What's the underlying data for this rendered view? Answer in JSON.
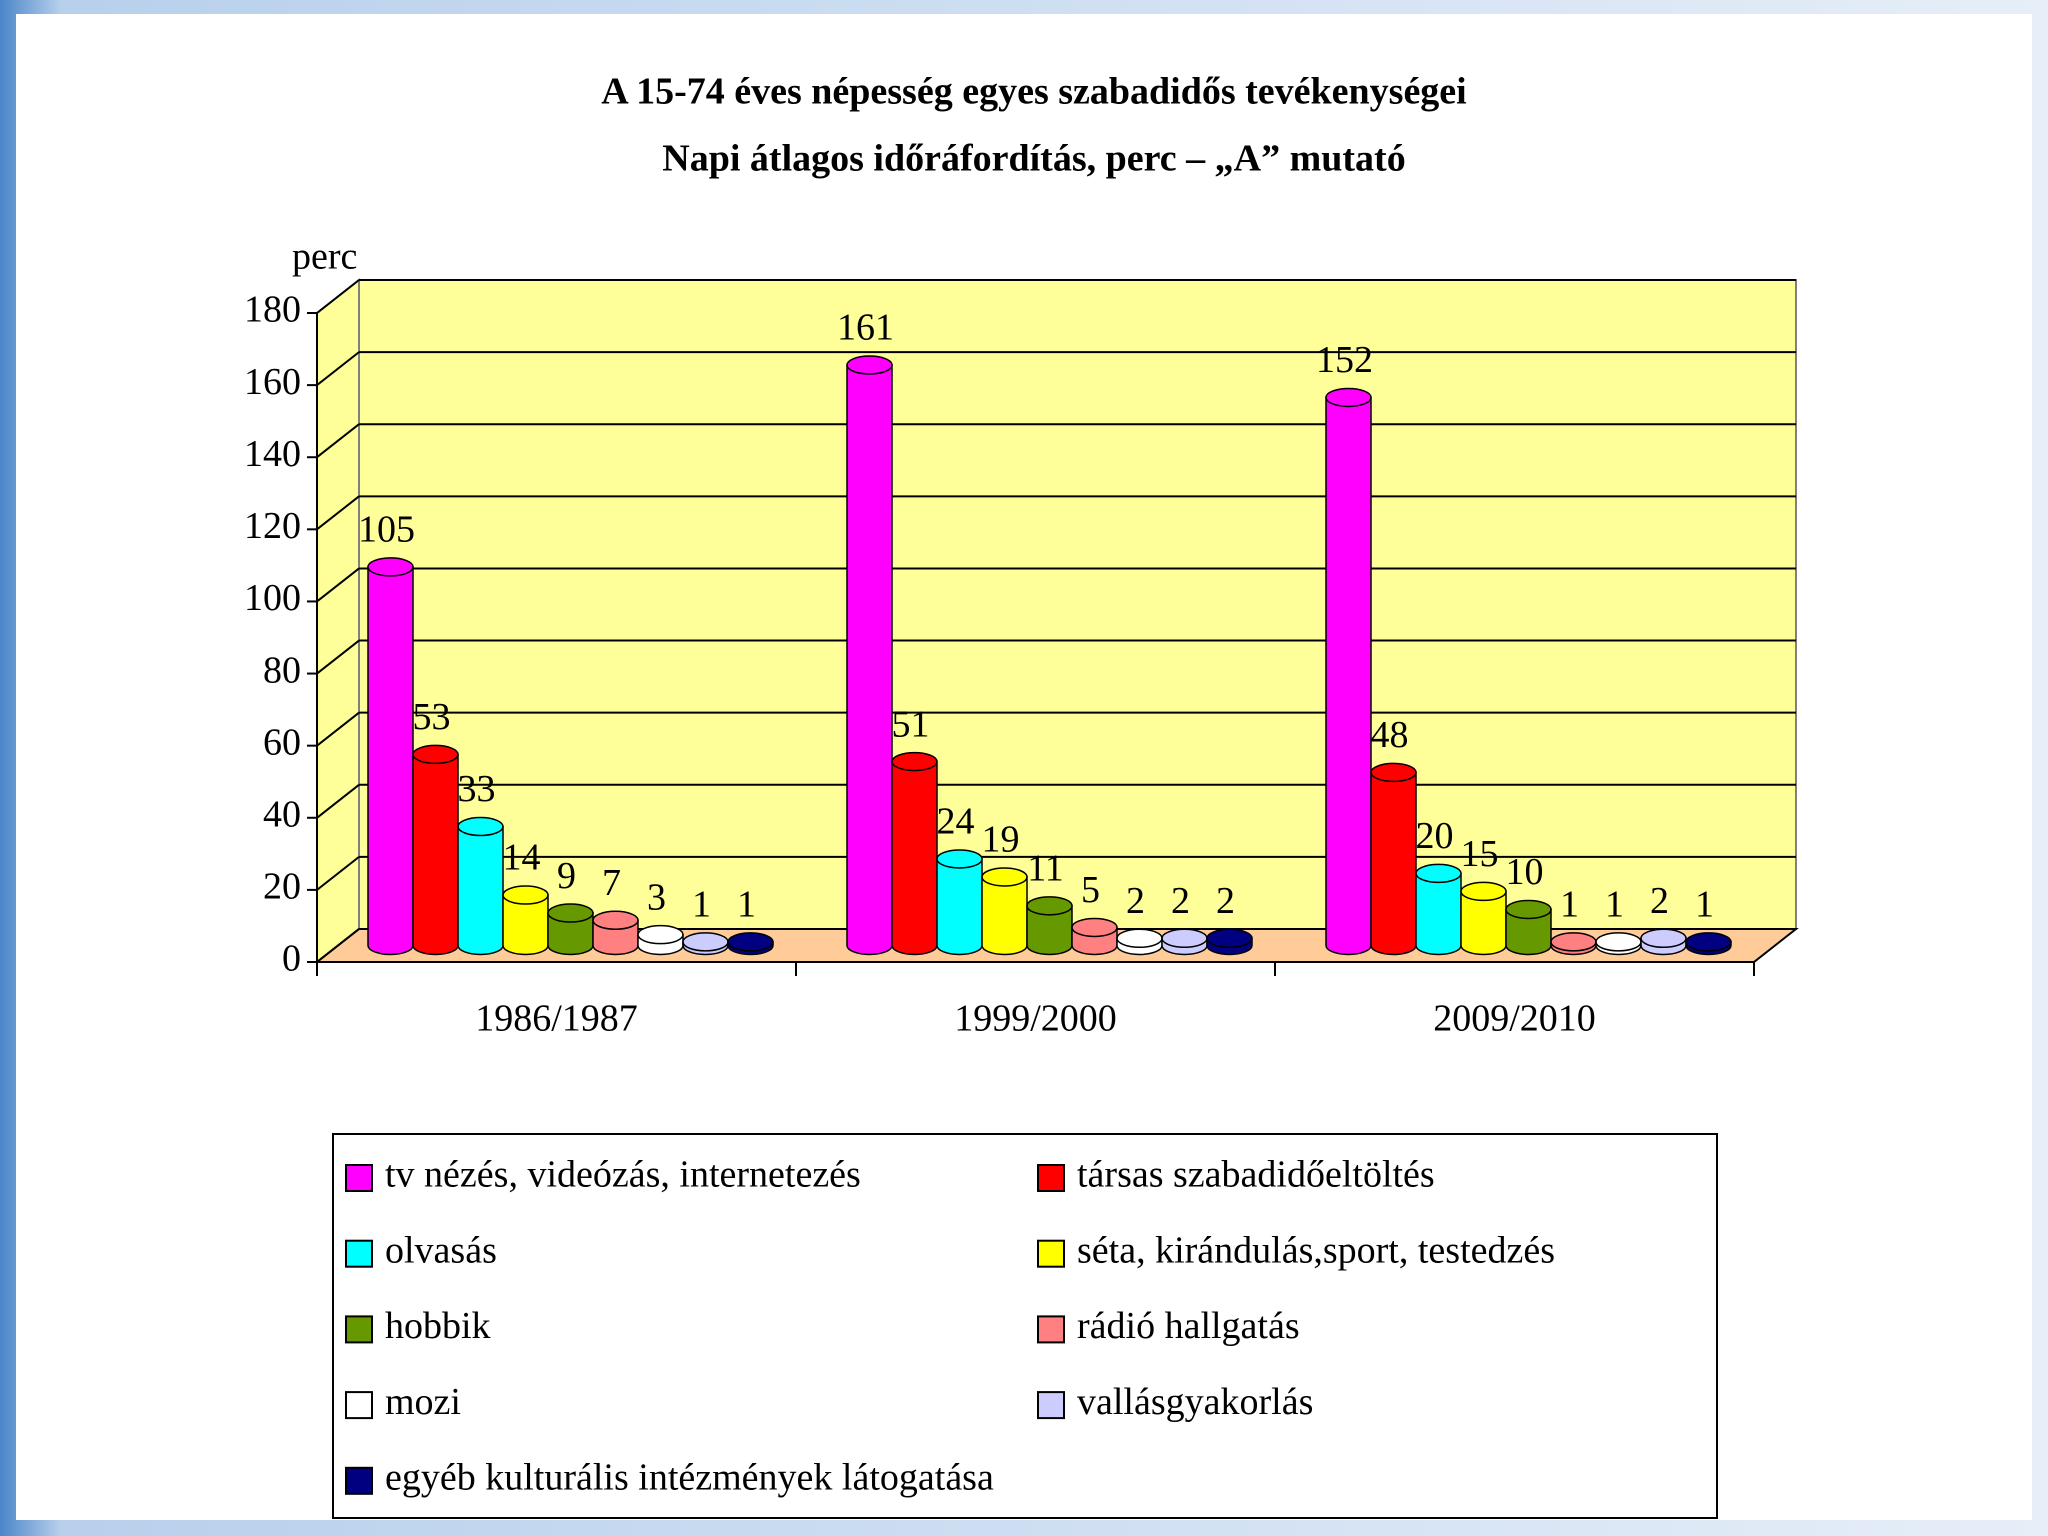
{
  "chart_data": {
    "type": "bar3d",
    "title": "A 15-74 éves népesség egyes szabadidős tevékenységei",
    "subtitle": "Napi átlagos időráfordítás, perc – „A” mutató",
    "y_label": "perc",
    "categories": [
      "1986/1987",
      "1999/2000",
      "2009/2010"
    ],
    "series": [
      {
        "name": "tv nézés, videózás, internetezés",
        "color": "#ff00ff",
        "values": [
          105,
          161,
          152
        ]
      },
      {
        "name": "társas szabadidőeltöltés",
        "color": "#ff0000",
        "values": [
          53,
          51,
          48
        ]
      },
      {
        "name": "olvasás",
        "color": "#00ffff",
        "values": [
          33,
          24,
          20
        ]
      },
      {
        "name": "séta, kirándulás,sport, testedzés",
        "color": "#ffff00",
        "values": [
          14,
          19,
          15
        ]
      },
      {
        "name": "hobbik",
        "color": "#669900",
        "values": [
          9,
          11,
          10
        ]
      },
      {
        "name": "rádió hallgatás",
        "color": "#ff8080",
        "values": [
          7,
          5,
          1
        ]
      },
      {
        "name": "mozi",
        "color": "#ffffff",
        "values": [
          3,
          2,
          1
        ]
      },
      {
        "name": "vallásgyakorlás",
        "color": "#ccccff",
        "values": [
          1,
          2,
          2
        ]
      },
      {
        "name": "egyéb kulturális intézmények látogatása",
        "color": "#000080",
        "values": [
          1,
          2,
          1
        ]
      }
    ],
    "ylim": [
      0,
      180
    ],
    "yticks": [
      0,
      20,
      40,
      60,
      80,
      100,
      120,
      140,
      160,
      180
    ],
    "grid": true,
    "wall_color": "#ffff99",
    "floor_color": "#ffcc99"
  }
}
